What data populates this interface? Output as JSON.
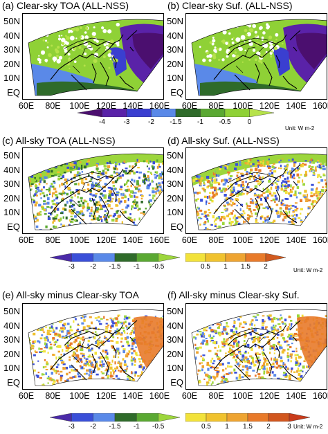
{
  "panels": [
    {
      "id": "a",
      "title": "(a) Clear-sky TOA (ALL-NSS)",
      "kind": "clear-toa"
    },
    {
      "id": "b",
      "title": "(b) Clear-sky Suf. (ALL-NSS)",
      "kind": "clear-suf"
    },
    {
      "id": "c",
      "title": "(c) All-sky TOA (ALL-NSS)",
      "kind": "all-toa"
    },
    {
      "id": "d",
      "title": "(d) All-sky Suf. (ALL-NSS)",
      "kind": "all-suf"
    },
    {
      "id": "e",
      "title": "(e) All-sky minus Clear-sky TOA",
      "kind": "diff-toa"
    },
    {
      "id": "f",
      "title": "(f) All-sky minus Clear-sky Suf.",
      "kind": "diff-suf"
    }
  ],
  "lat_labels": [
    "50N",
    "40N",
    "30N",
    "20N",
    "10N",
    "EQ"
  ],
  "lon_labels": [
    "60E",
    "80E",
    "100E",
    "120E",
    "140E",
    "160E"
  ],
  "colorbar_top": {
    "ticks": [
      "-4",
      "-3",
      "-2",
      "-1.5",
      "-1",
      "-0.5",
      "0"
    ],
    "colors": [
      "#4b0f6f",
      "#5a22a8",
      "#3a3fd0",
      "#5a89e8",
      "#2f6b2a",
      "#5aa832",
      "#8fd136",
      "#b6e24a"
    ],
    "unit": "Unit: W m-2"
  },
  "colorbar_mid_neg": {
    "ticks": [
      "-3",
      "-2",
      "-1.5",
      "-1",
      "-0.5"
    ],
    "colors": [
      "#4b2aa8",
      "#3a4fd8",
      "#5a89e8",
      "#2f6b2a",
      "#5aa832",
      "#9cd63c"
    ]
  },
  "colorbar_mid_pos": {
    "ticks": [
      "0.5",
      "1",
      "1.5",
      "2"
    ],
    "colors": [
      "#f2e23a",
      "#f0c22e",
      "#eea431",
      "#e87a2a",
      "#d15a1f"
    ],
    "unit": "Unit: W m-2"
  },
  "colorbar_bot_neg": {
    "ticks": [
      "-3",
      "-2",
      "-1.5",
      "-1",
      "-0.5"
    ],
    "colors": [
      "#4b2aa8",
      "#3a4fd8",
      "#5a89e8",
      "#2f6b2a",
      "#5aa832",
      "#9cd63c"
    ]
  },
  "colorbar_bot_pos": {
    "ticks": [
      "0.5",
      "1",
      "1.5",
      "2",
      "3"
    ],
    "colors": [
      "#f2e23a",
      "#f0c22e",
      "#eea431",
      "#e87a2a",
      "#d1561e",
      "#c93b1b"
    ],
    "unit": "Unit: W m-2"
  }
}
